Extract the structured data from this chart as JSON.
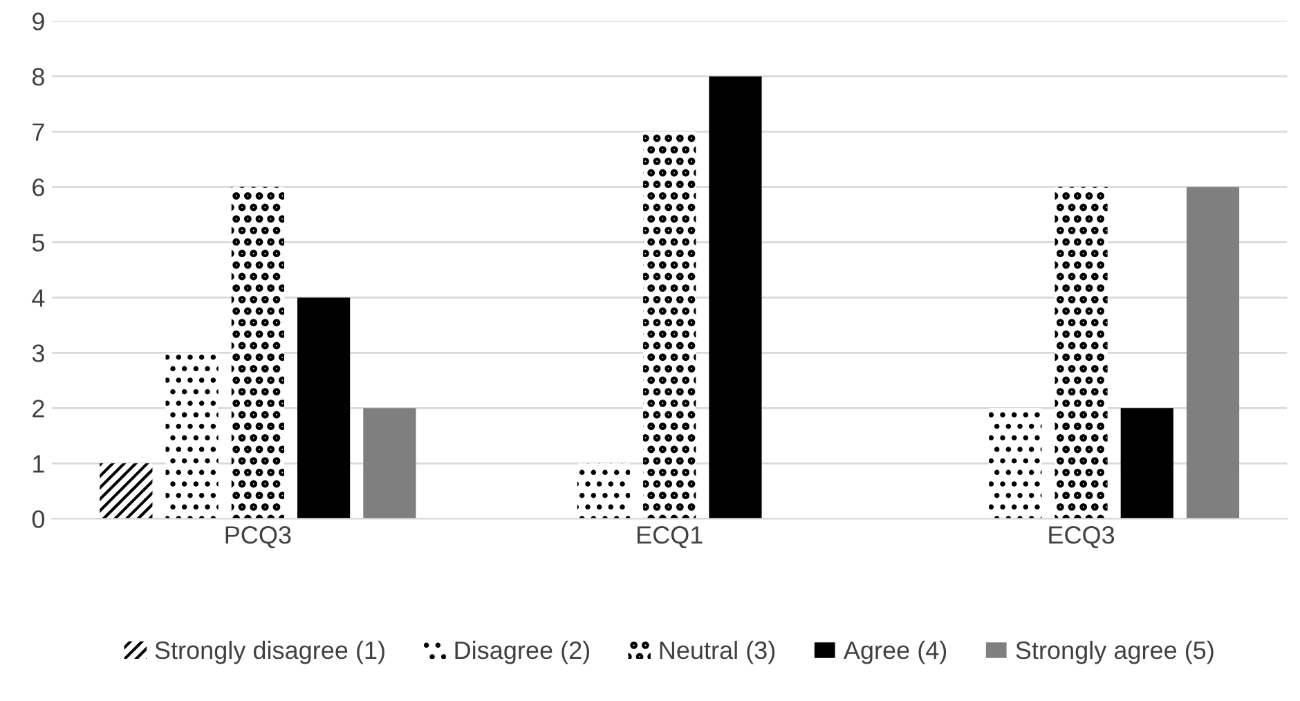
{
  "chart_data": {
    "type": "bar",
    "categories": [
      "PCQ3",
      "ECQ1",
      "ECQ3"
    ],
    "series": [
      {
        "name": "Strongly disagree (1)",
        "color": "#000000",
        "values": [
          1,
          0,
          0
        ]
      },
      {
        "name": "Disagree (2)",
        "color": "#000000",
        "values": [
          3,
          1,
          2
        ]
      },
      {
        "name": "Neutral (3)",
        "color": "#000000",
        "values": [
          6,
          7,
          6
        ]
      },
      {
        "name": "Agree (4)",
        "color": "#000000",
        "values": [
          4,
          8,
          2
        ]
      },
      {
        "name": "Strongly agree (5)",
        "color": "#7f7f7f",
        "values": [
          2,
          0,
          6
        ]
      }
    ],
    "ylim": [
      0,
      9
    ],
    "yticks": [
      0,
      1,
      2,
      3,
      4,
      5,
      6,
      7,
      8,
      9
    ],
    "grid": "y",
    "legend": "bottom"
  }
}
